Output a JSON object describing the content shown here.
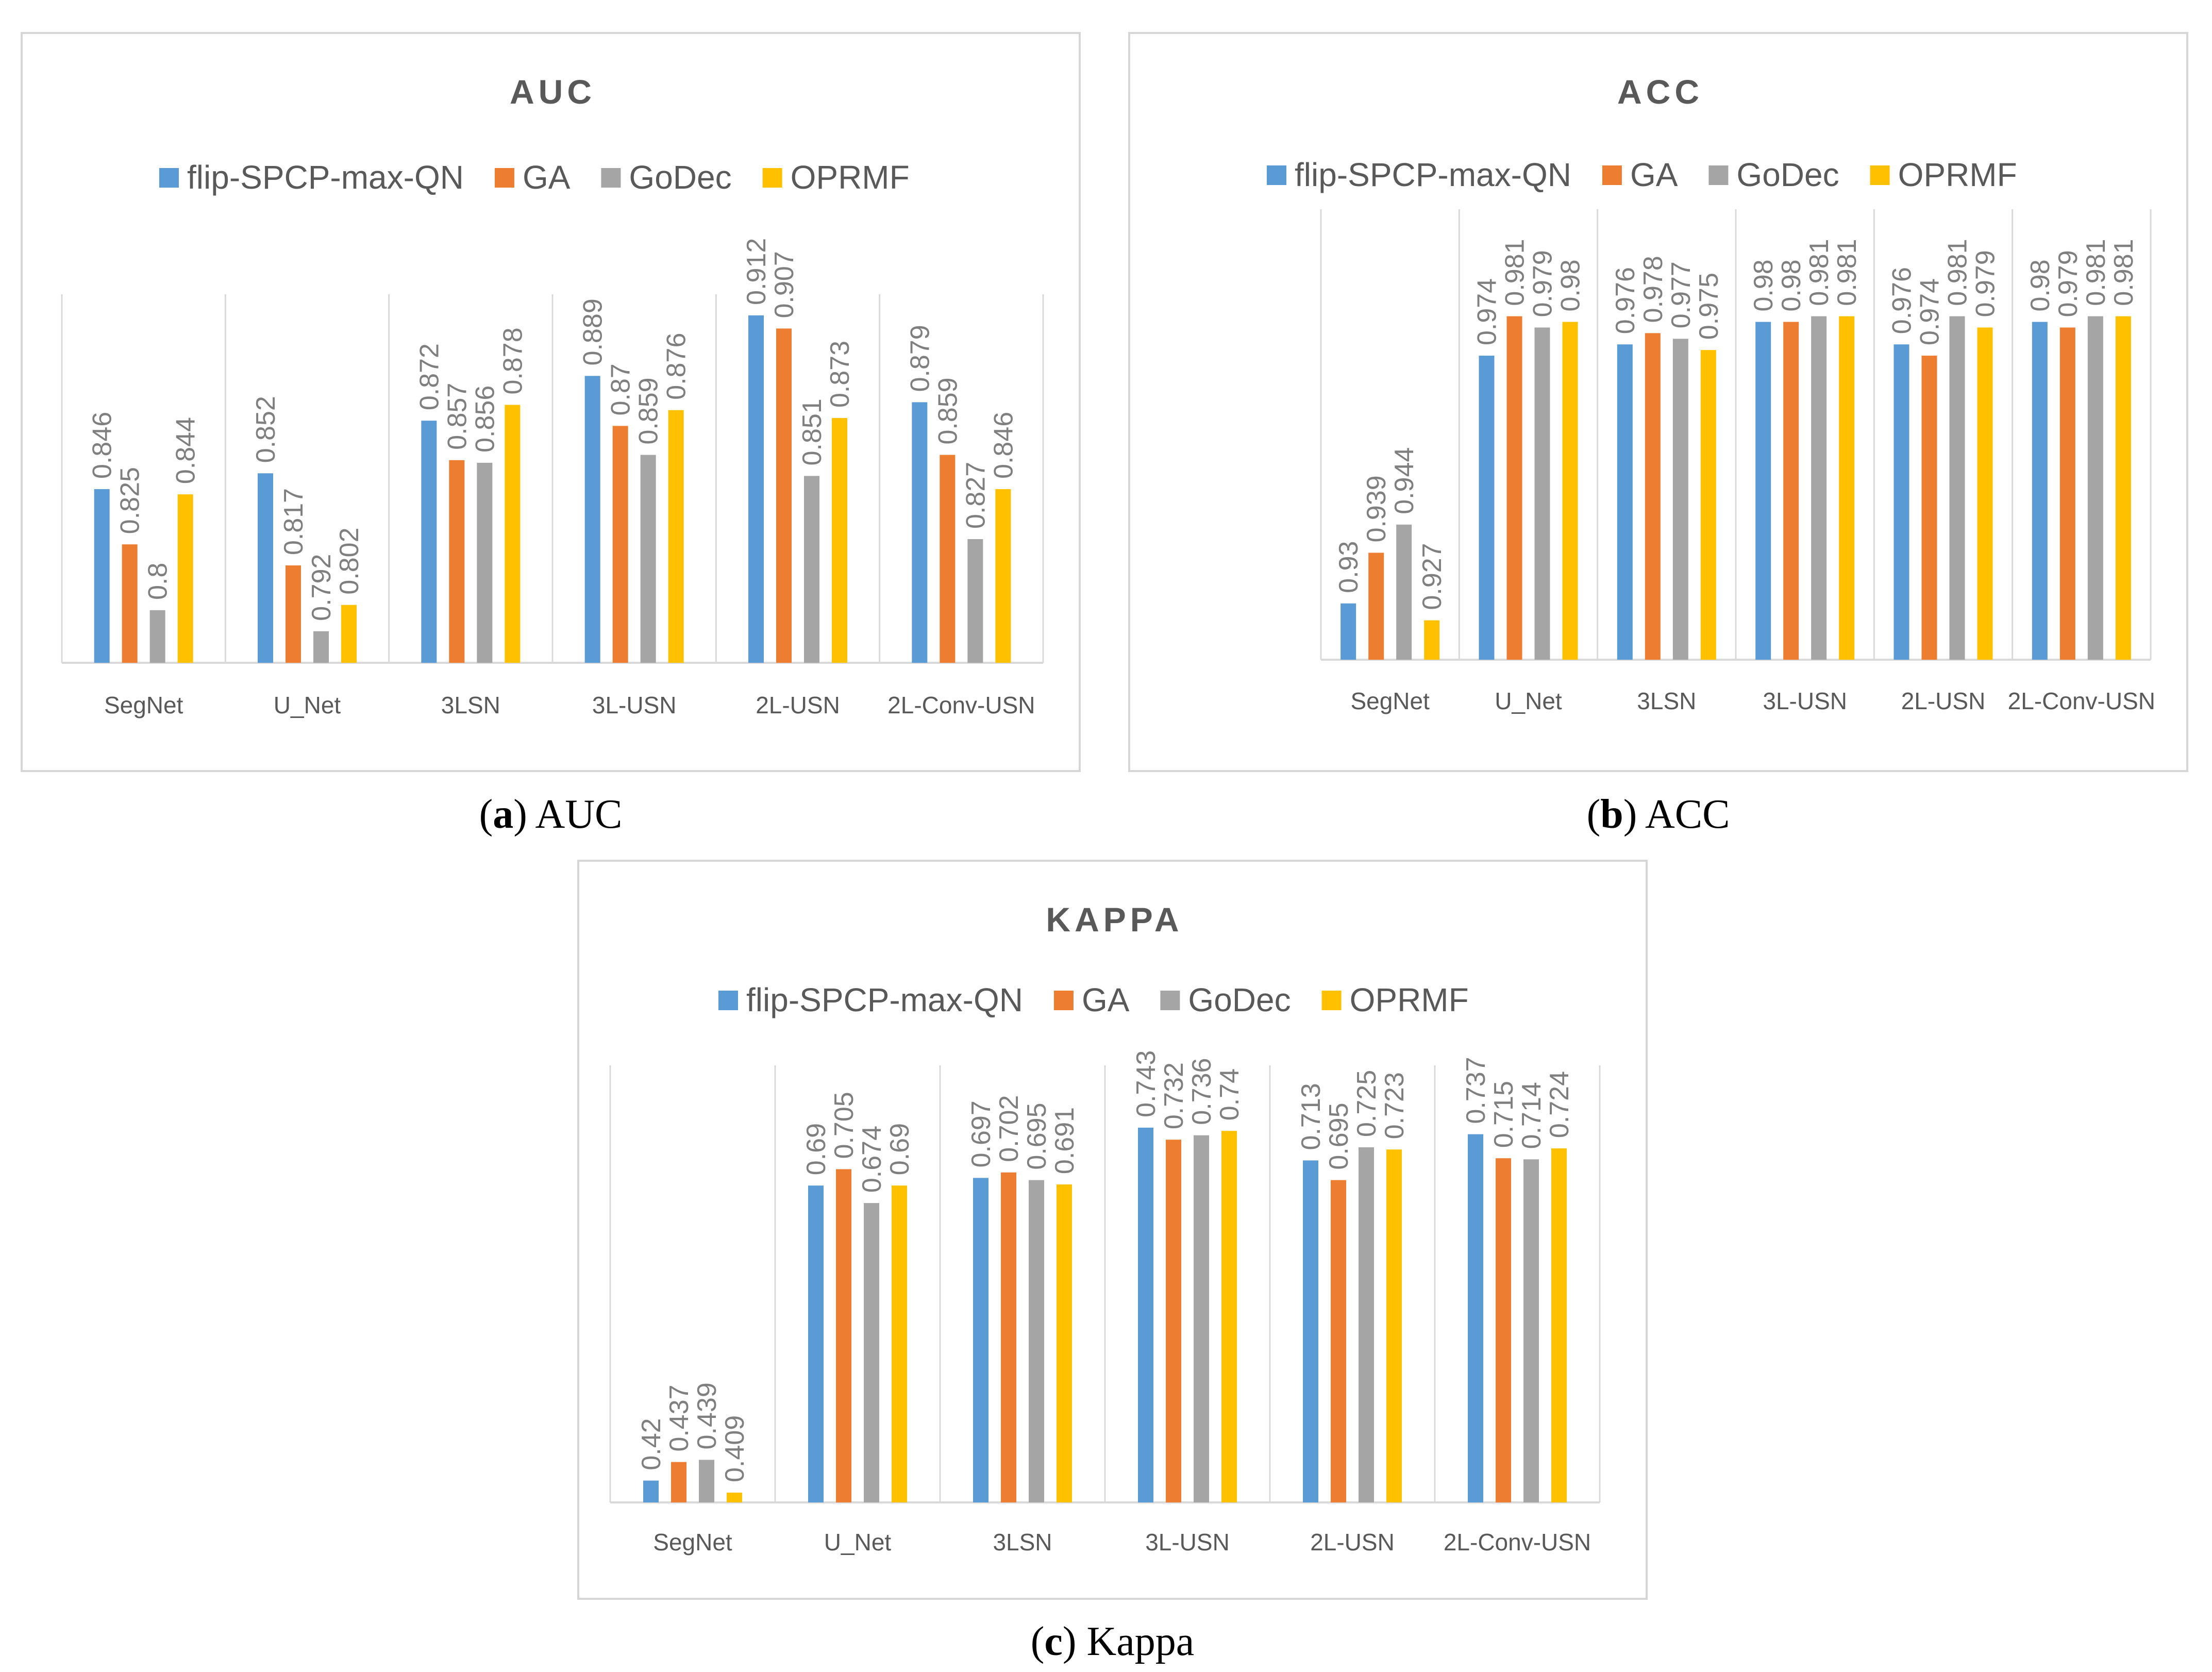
{
  "colors": {
    "flip-SPCP-max-QN": "#5b9bd5",
    "GA": "#ed7d31",
    "GoDec": "#a5a5a5",
    "OPRMF": "#ffc000",
    "axis": "#d9d9d9",
    "text": "#595959",
    "label": "#7f7f7f"
  },
  "chart_data": [
    {
      "type": "bar",
      "title": "AUC",
      "caption_letter": "a",
      "caption_text": "AUC",
      "categories": [
        "SegNet",
        "U_Net",
        "3LSN",
        "3L-USN",
        "2L-USN",
        "2L-Conv-USN"
      ],
      "series": [
        {
          "name": "flip-SPCP-max-QN",
          "values": [
            0.846,
            0.852,
            0.872,
            0.889,
            0.912,
            0.879
          ]
        },
        {
          "name": "GA",
          "values": [
            0.825,
            0.817,
            0.857,
            0.87,
            0.907,
            0.859
          ]
        },
        {
          "name": "GoDec",
          "values": [
            0.8,
            0.792,
            0.856,
            0.859,
            0.851,
            0.827
          ]
        },
        {
          "name": "OPRMF",
          "values": [
            0.844,
            0.802,
            0.878,
            0.876,
            0.873,
            0.846
          ]
        }
      ],
      "value_labels": [
        [
          "0.846",
          "0.852",
          "0.872",
          "0.889",
          "0.912",
          "0.879"
        ],
        [
          "0.825",
          "0.817",
          "0.857",
          "0.87",
          "0.907",
          "0.859"
        ],
        [
          "0.8",
          "0.792",
          "0.856",
          "0.859",
          "0.851",
          "0.827"
        ],
        [
          "0.844",
          "0.802",
          "0.878",
          "0.876",
          "0.873",
          "0.846"
        ]
      ],
      "ylim": [
        0.78,
        0.92
      ],
      "legend": "top",
      "grid": false
    },
    {
      "type": "bar",
      "title": "ACC",
      "caption_letter": "b",
      "caption_text": "ACC",
      "categories": [
        "SegNet",
        "U_Net",
        "3LSN",
        "3L-USN",
        "2L-USN",
        "2L-Conv-USN"
      ],
      "series": [
        {
          "name": "flip-SPCP-max-QN",
          "values": [
            0.93,
            0.974,
            0.976,
            0.98,
            0.976,
            0.98
          ]
        },
        {
          "name": "GA",
          "values": [
            0.939,
            0.981,
            0.978,
            0.98,
            0.974,
            0.979
          ]
        },
        {
          "name": "GoDec",
          "values": [
            0.944,
            0.979,
            0.977,
            0.981,
            0.981,
            0.981
          ]
        },
        {
          "name": "OPRMF",
          "values": [
            0.927,
            0.98,
            0.975,
            0.981,
            0.979,
            0.981
          ]
        }
      ],
      "value_labels": [
        [
          "0.93",
          "0.974",
          "0.976",
          "0.98",
          "0.976",
          "0.98"
        ],
        [
          "0.939",
          "0.981",
          "0.978",
          "0.98",
          "0.974",
          "0.979"
        ],
        [
          "0.944",
          "0.979",
          "0.977",
          "0.981",
          "0.981",
          "0.981"
        ],
        [
          "0.927",
          "0.98",
          "0.975",
          "0.981",
          "0.979",
          "0.981"
        ]
      ],
      "ylim": [
        0.92,
        1.0
      ],
      "legend": "top",
      "grid": false
    },
    {
      "type": "bar",
      "title": "KAPPA",
      "caption_letter": "c",
      "caption_text": "Kappa",
      "categories": [
        "SegNet",
        "U_Net",
        "3LSN",
        "3L-USN",
        "2L-USN",
        "2L-Conv-USN"
      ],
      "series": [
        {
          "name": "flip-SPCP-max-QN",
          "values": [
            0.42,
            0.69,
            0.697,
            0.743,
            0.713,
            0.737
          ]
        },
        {
          "name": "GA",
          "values": [
            0.437,
            0.705,
            0.702,
            0.732,
            0.695,
            0.715
          ]
        },
        {
          "name": "GoDec",
          "values": [
            0.439,
            0.674,
            0.695,
            0.736,
            0.725,
            0.714
          ]
        },
        {
          "name": "OPRMF",
          "values": [
            0.409,
            0.69,
            0.691,
            0.74,
            0.723,
            0.724
          ]
        }
      ],
      "value_labels": [
        [
          "0.42",
          "0.69",
          "0.697",
          "0.743",
          "0.713",
          "0.737"
        ],
        [
          "0.437",
          "0.705",
          "0.702",
          "0.732",
          "0.695",
          "0.715"
        ],
        [
          "0.439",
          "0.674",
          "0.695",
          "0.736",
          "0.725",
          "0.714"
        ],
        [
          "0.409",
          "0.69",
          "0.691",
          "0.74",
          "0.723",
          "0.724"
        ]
      ],
      "ylim": [
        0.4,
        0.8
      ],
      "legend": "top",
      "grid": false
    }
  ]
}
